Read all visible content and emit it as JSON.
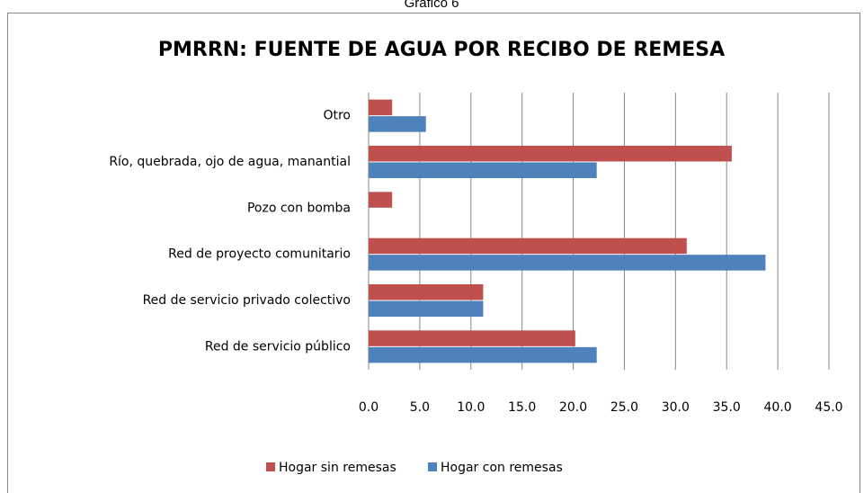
{
  "chart_data": {
    "type": "hbar",
    "heading": "Gráfico 6",
    "title": "PMRRN: FUENTE DE AGUA POR RECIBO DE REMESA",
    "categories": [
      "Otro",
      "Río, quebrada, ojo de agua, manantial",
      "Pozo con bomba",
      "Red de proyecto comunitario",
      "Red de servicio privado colectivo",
      "Red de servicio público"
    ],
    "series": [
      {
        "name": "Hogar sin remesas",
        "color": "#c0504d",
        "values": [
          2.3,
          35.5,
          2.3,
          31.1,
          11.2,
          20.2
        ]
      },
      {
        "name": "Hogar con remesas",
        "color": "#4f81bd",
        "values": [
          5.6,
          22.3,
          0,
          38.8,
          11.2,
          22.3
        ]
      }
    ],
    "xlim": [
      0,
      45
    ],
    "xticks": [
      {
        "value": 0,
        "label": "0.0"
      },
      {
        "value": 5,
        "label": "5.0"
      },
      {
        "value": 10,
        "label": "10.0"
      },
      {
        "value": 15,
        "label": "15.0"
      },
      {
        "value": 20,
        "label": "20.0"
      },
      {
        "value": 25,
        "label": "25.0"
      },
      {
        "value": 30,
        "label": "30.0"
      },
      {
        "value": 35,
        "label": "35.0"
      },
      {
        "value": 40,
        "label": "40.0"
      },
      {
        "value": 45,
        "label": "45.0"
      }
    ],
    "grid": true,
    "legend": "bottom"
  }
}
